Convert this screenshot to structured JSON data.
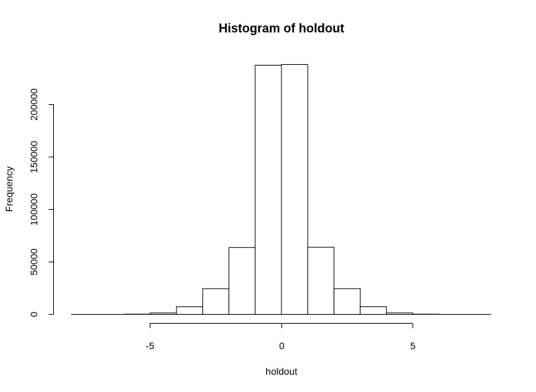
{
  "chart_data": {
    "type": "histogram",
    "title": "Histogram of holdout",
    "xlabel": "holdout",
    "ylabel": "Frequency",
    "bins": [
      {
        "x0": -7,
        "x1": -6,
        "count": 0
      },
      {
        "x0": -6,
        "x1": -5,
        "count": 200
      },
      {
        "x0": -5,
        "x1": -4,
        "count": 1300
      },
      {
        "x0": -4,
        "x1": -3,
        "count": 7200
      },
      {
        "x0": -3,
        "x1": -2,
        "count": 24500
      },
      {
        "x0": -2,
        "x1": -1,
        "count": 63700
      },
      {
        "x0": -1,
        "x1": 0,
        "count": 237500
      },
      {
        "x0": 0,
        "x1": 1,
        "count": 238200
      },
      {
        "x0": 1,
        "x1": 2,
        "count": 64000
      },
      {
        "x0": 2,
        "x1": 3,
        "count": 24500
      },
      {
        "x0": 3,
        "x1": 4,
        "count": 7300
      },
      {
        "x0": 4,
        "x1": 5,
        "count": 1400
      },
      {
        "x0": 5,
        "x1": 6,
        "count": 200
      },
      {
        "x0": 6,
        "x1": 7,
        "count": 0
      }
    ],
    "xlim": [
      -8,
      8
    ],
    "ylim": [
      0,
      240000
    ],
    "x_ticks": [
      -5,
      0,
      5
    ],
    "x_tick_labels": [
      "-5",
      "0",
      "5"
    ],
    "y_ticks": [
      0,
      50000,
      100000,
      150000,
      200000
    ],
    "y_tick_labels": [
      "0",
      "50000",
      "100000",
      "150000",
      "200000"
    ],
    "grid": false,
    "colors": {
      "bar_fill": "#ffffff",
      "bar_stroke": "#000000"
    }
  }
}
